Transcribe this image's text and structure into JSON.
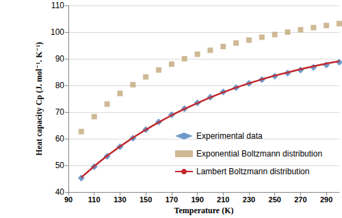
{
  "chart_data": {
    "type": "line",
    "x_label": "Temperature (K)",
    "y_label": "Heat capacity Cp (J. mol⁻¹. K⁻¹)",
    "x": [
      100,
      110,
      120,
      130,
      140,
      150,
      160,
      170,
      180,
      190,
      200,
      210,
      220,
      230,
      240,
      250,
      260,
      270,
      280,
      290,
      300
    ],
    "series": [
      {
        "name": "Experimental data",
        "type": "scatter",
        "marker": "diamond",
        "color": "#4a7ebb",
        "values": [
          45.3,
          49.5,
          53.4,
          57.0,
          60.2,
          63.4,
          66.3,
          69.0,
          71.3,
          73.5,
          75.6,
          77.6,
          79.2,
          80.8,
          82.2,
          83.5,
          84.6,
          85.8,
          86.8,
          87.7,
          88.7
        ]
      },
      {
        "name": "Exponential Boltzmann distribution",
        "type": "scatter",
        "marker": "square",
        "color": "#c3a87a",
        "values": [
          62.7,
          68.3,
          73.0,
          77.0,
          80.3,
          83.2,
          85.8,
          88.0,
          90.0,
          91.7,
          93.2,
          94.6,
          95.9,
          97.0,
          98.1,
          99.1,
          100.0,
          100.9,
          101.7,
          102.5,
          103.2
        ]
      },
      {
        "name": "Lambert Boltzmann distribution",
        "type": "line",
        "line_style": "solid",
        "color": "#c0282d",
        "values": [
          45.5,
          49.7,
          53.6,
          57.1,
          60.4,
          63.4,
          66.2,
          68.8,
          71.2,
          73.4,
          75.5,
          77.4,
          79.2,
          80.8,
          82.3,
          83.7,
          84.9,
          86.1,
          87.2,
          88.2,
          89.1
        ]
      }
    ],
    "xlim": [
      90,
      300
    ],
    "xticks": [
      90,
      110,
      130,
      150,
      170,
      190,
      210,
      230,
      250,
      270,
      290
    ],
    "ylim": [
      40,
      110
    ],
    "yticks": [
      40,
      50,
      60,
      70,
      80,
      90,
      100,
      110
    ],
    "grid": true,
    "legend": "right"
  }
}
